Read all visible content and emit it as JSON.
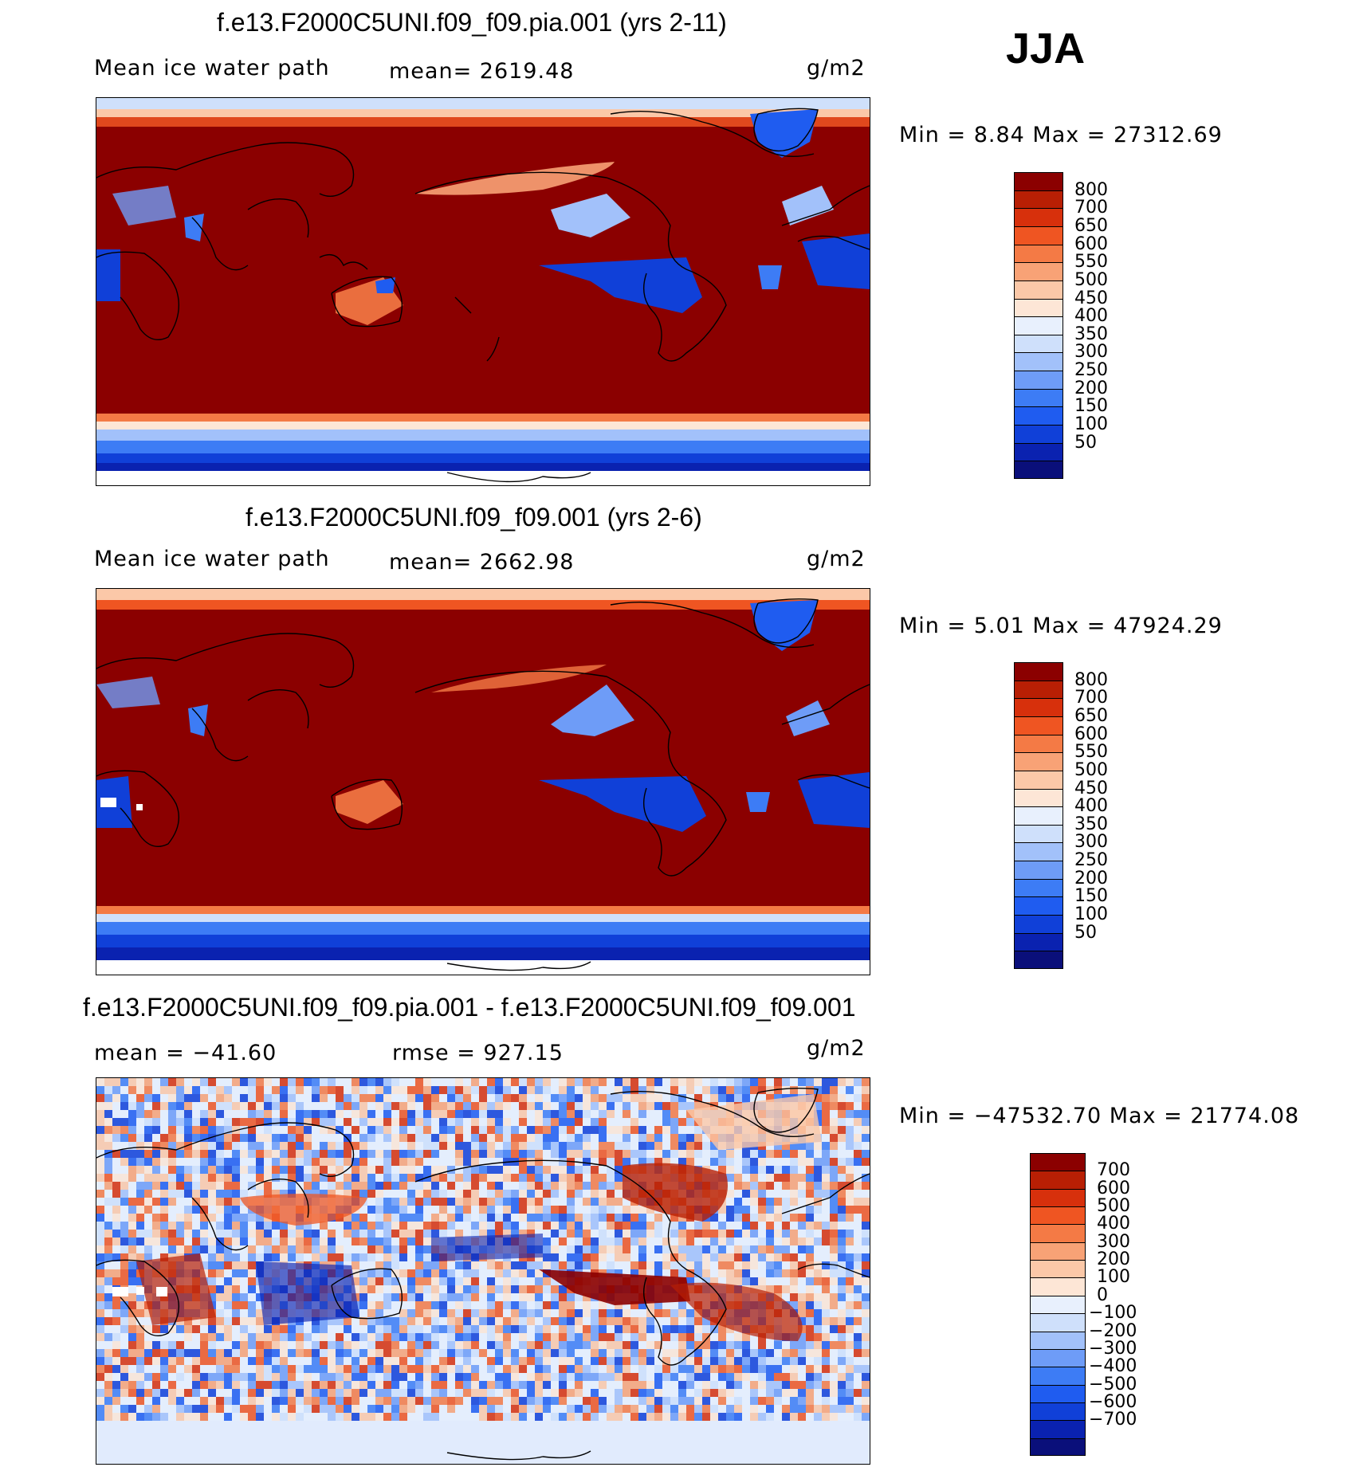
{
  "season": "JJA",
  "colors": {
    "abs_scale": [
      "#0a0f7a",
      "#0a22b0",
      "#1040d8",
      "#1f5cf0",
      "#3d7cf5",
      "#6e9cf7",
      "#a2c1fa",
      "#cfe0fb",
      "#e8f0fd",
      "#fde6d6",
      "#fbc8a8",
      "#f8a276",
      "#f47a45",
      "#ef5522",
      "#d7300c",
      "#b81f04",
      "#8b0000"
    ],
    "diff_scale": [
      "#0a0f7a",
      "#0a22b0",
      "#1040d8",
      "#1f5cf0",
      "#3d7cf5",
      "#6e9cf7",
      "#a2c1fa",
      "#cfe0fb",
      "#e8f0fd",
      "#fde6d6",
      "#fbc8a8",
      "#f8a276",
      "#f47a45",
      "#ef5522",
      "#d7300c",
      "#b81f04",
      "#8b0000"
    ]
  },
  "panels": [
    {
      "title": "f.e13.F2000C5UNI.f09_f09.pia.001 (yrs 2-11)",
      "left_label": "Mean ice water path",
      "center_label": "mean= 2619.48",
      "units": "g/m2",
      "minmax": "Min =    8.84 Max = 27312.69",
      "kind": "abs",
      "levels": [
        "800",
        "700",
        "650",
        "600",
        "550",
        "500",
        "450",
        "400",
        "350",
        "300",
        "250",
        "200",
        "150",
        "100",
        "50"
      ]
    },
    {
      "title": "f.e13.F2000C5UNI.f09_f09.001 (yrs 2-6)",
      "left_label": "Mean ice water path",
      "center_label": "mean= 2662.98",
      "units": "g/m2",
      "minmax": "Min =    5.01 Max = 47924.29",
      "kind": "abs",
      "levels": [
        "800",
        "700",
        "650",
        "600",
        "550",
        "500",
        "450",
        "400",
        "350",
        "300",
        "250",
        "200",
        "150",
        "100",
        "50"
      ]
    },
    {
      "title": "f.e13.F2000C5UNI.f09_f09.pia.001 - f.e13.F2000C5UNI.f09_f09.001",
      "left_label": "mean = −41.60",
      "center_label": "rmse = 927.15",
      "units": "g/m2",
      "minmax": "Min = −47532.70 Max = 21774.08",
      "kind": "diff",
      "levels": [
        "700",
        "600",
        "500",
        "400",
        "300",
        "200",
        "100",
        "0",
        "−100",
        "−200",
        "−300",
        "−400",
        "−500",
        "−600",
        "−700"
      ]
    }
  ]
}
